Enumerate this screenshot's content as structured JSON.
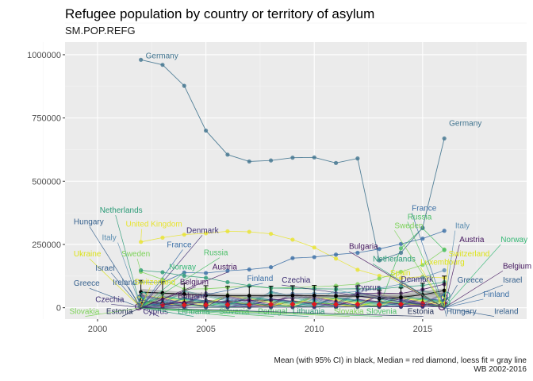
{
  "title": "Refugee population by country or territory of asylum",
  "subtitle": "SM.POP.REFG",
  "caption_line1": "Mean (with 95% CI) in black, Median = red diamond, loess fit = gray line",
  "caption_line2": "WB 2002-2016",
  "chart_data": {
    "type": "line",
    "x_range": [
      1998.5,
      2019.8
    ],
    "y_range": [
      -45000,
      1050000
    ],
    "x_ticks": [
      2000,
      2005,
      2010,
      2015
    ],
    "y_ticks": [
      0,
      250000,
      500000,
      750000,
      1000000
    ],
    "y_tick_labels": [
      "0",
      "250000",
      "500000",
      "750000",
      "1000000"
    ],
    "grid": true,
    "germany": {
      "name": "Germany",
      "x": [
        2002,
        2003,
        2004,
        2005,
        2006,
        2007,
        2008,
        2009,
        2010,
        2011,
        2012,
        2013,
        2014,
        2015,
        2016
      ],
      "y": [
        980000,
        960000,
        877000,
        700000,
        605000,
        578000,
        582000,
        593000,
        594000,
        572000,
        590000,
        187000,
        217000,
        316000,
        669000
      ],
      "color": "#41748f"
    },
    "highlight_series": [
      {
        "name": "United Kingdom",
        "color": "#e8e430",
        "x": [
          2002,
          2003,
          2004,
          2005,
          2006,
          2007,
          2008,
          2009,
          2010,
          2011,
          2012,
          2013,
          2014,
          2015,
          2016
        ],
        "y": [
          260000,
          277000,
          289000,
          294000,
          302000,
          300000,
          292000,
          269000,
          238000,
          194000,
          150000,
          126000,
          117000,
          123000,
          118000
        ]
      },
      {
        "name": "France",
        "color": "#3a6ea5",
        "x": [
          2002,
          2003,
          2004,
          2005,
          2006,
          2007,
          2008,
          2009,
          2010,
          2011,
          2012,
          2013,
          2014,
          2015,
          2016
        ],
        "y": [
          102000,
          100000,
          139000,
          137000,
          146000,
          151000,
          160000,
          196000,
          200000,
          210000,
          217000,
          232000,
          252000,
          273000,
          304000
        ]
      },
      {
        "name": "Sweden",
        "color": "#7ed35a",
        "x": [
          2002,
          2003,
          2004,
          2005,
          2006,
          2007,
          2008,
          2009,
          2010,
          2011,
          2012,
          2013,
          2014,
          2015,
          2016
        ],
        "y": [
          142000,
          112000,
          73000,
          75000,
          80000,
          86000,
          77000,
          80000,
          82000,
          87000,
          93000,
          115000,
          142000,
          169000,
          230000
        ]
      },
      {
        "name": "Italy",
        "color": "#5b8db0",
        "x": [
          2002,
          2003,
          2004,
          2005,
          2006,
          2007,
          2008,
          2009,
          2010,
          2011,
          2012,
          2013,
          2014,
          2015,
          2016
        ],
        "y": [
          5000,
          6000,
          15000,
          21000,
          27000,
          38000,
          47000,
          55000,
          56000,
          58000,
          64000,
          77000,
          93000,
          119000,
          148000
        ]
      },
      {
        "name": "Netherlands",
        "color": "#2a9a76",
        "x": [
          2002,
          2003,
          2004,
          2005,
          2006,
          2007,
          2008,
          2009,
          2010,
          2011,
          2012,
          2013,
          2014,
          2015,
          2016
        ],
        "y": [
          148000,
          140000,
          126000,
          118000,
          101000,
          87000,
          78000,
          76000,
          75000,
          74000,
          75000,
          74000,
          82000,
          88000,
          101000
        ]
      },
      {
        "name": "Russia",
        "color": "#4cbf68",
        "x": [
          2002,
          2003,
          2004,
          2005,
          2006,
          2007,
          2008,
          2009,
          2010,
          2011,
          2012,
          2013,
          2014,
          2015,
          2016
        ],
        "y": [
          17000,
          3000,
          2000,
          1500,
          1000,
          1500,
          3000,
          3500,
          5000,
          3500,
          3000,
          3500,
          235000,
          314000,
          228000
        ]
      },
      {
        "name": "Austria",
        "color": "#45175f",
        "x": [
          2002,
          2003,
          2004,
          2005,
          2006,
          2007,
          2008,
          2009,
          2010,
          2011,
          2012,
          2013,
          2014,
          2015,
          2016
        ],
        "y": [
          30000,
          17000,
          20000,
          21000,
          25000,
          30000,
          30000,
          38000,
          43000,
          47000,
          55000,
          58000,
          56000,
          72000,
          93000
        ]
      },
      {
        "name": "Czechia",
        "color": "#3a2b70",
        "x": [
          2002,
          2003,
          2004,
          2005,
          2006,
          2007,
          2008,
          2009,
          2010,
          2011,
          2012,
          2013,
          2014,
          2015,
          2016
        ],
        "y": [
          1800,
          1000,
          1500,
          2000,
          2000,
          2000,
          2000,
          2100,
          2100,
          2500,
          3000,
          3500,
          3500,
          3500,
          4000
        ]
      }
    ],
    "background_series_count": 26,
    "mean": {
      "x": [
        2002,
        2003,
        2004,
        2005,
        2006,
        2007,
        2008,
        2009,
        2010,
        2011,
        2012,
        2013,
        2014,
        2015,
        2016
      ],
      "y": [
        62000,
        58000,
        54000,
        49000,
        47000,
        47000,
        47000,
        48000,
        48000,
        46000,
        46000,
        36000,
        41000,
        51000,
        68000
      ],
      "ci_low": [
        20000,
        18000,
        17000,
        15000,
        14000,
        14000,
        14000,
        15000,
        15000,
        14000,
        14000,
        10000,
        11000,
        15000,
        20000
      ],
      "ci_high": [
        108000,
        102000,
        95000,
        87000,
        84000,
        84000,
        85000,
        87000,
        88000,
        84000,
        86000,
        68000,
        78000,
        97000,
        125000
      ]
    },
    "median": {
      "x": [
        2002,
        2003,
        2004,
        2005,
        2006,
        2007,
        2008,
        2009,
        2010,
        2011,
        2012,
        2013,
        2014,
        2015,
        2016
      ],
      "y": [
        10000,
        11000,
        11000,
        11000,
        12000,
        12000,
        13000,
        14000,
        14000,
        13000,
        14000,
        13000,
        14000,
        15000,
        17000
      ]
    },
    "loess": {
      "x": [
        2002,
        2004,
        2006,
        2008,
        2010,
        2012,
        2014,
        2016
      ],
      "y": [
        60000,
        52000,
        48000,
        47000,
        46000,
        45000,
        46000,
        58000
      ],
      "band_low": [
        45000,
        42000,
        40000,
        39000,
        38000,
        37000,
        36000,
        40000
      ],
      "band_high": [
        75000,
        62000,
        56000,
        55000,
        54000,
        53000,
        56000,
        76000
      ]
    },
    "labels": [
      {
        "text": "Germany",
        "x": 2002,
        "y": 980000,
        "side": "right",
        "dy": -2,
        "color": "#41748f"
      },
      {
        "text": "Germany",
        "x": 2016,
        "y": 669000,
        "side": "right",
        "dy": -16,
        "color": "#41748f"
      },
      {
        "text": "Hungary",
        "x": 2002,
        "y": 0,
        "side": "left",
        "lx": 1998.9,
        "ly": 330000,
        "color": "#35608d"
      },
      {
        "text": "Netherlands",
        "x": 2002,
        "y": 0,
        "side": "left",
        "lx": 2000.1,
        "ly": 375000,
        "color": "#2a9a76"
      },
      {
        "text": "Italy",
        "x": 2002,
        "y": 0,
        "side": "left",
        "lx": 2000.2,
        "ly": 267000,
        "color": "#5b8db0"
      },
      {
        "text": "United Kingdom",
        "x": 2002,
        "y": 260000,
        "side": "left",
        "lx": 2001.3,
        "ly": 320000,
        "color": "#e8e430"
      },
      {
        "text": "Denmark",
        "x": 2002,
        "y": 0,
        "side": "left",
        "lx": 2004.1,
        "ly": 296000,
        "color": "#3a2b70"
      },
      {
        "text": "France",
        "x": 2002,
        "y": 0,
        "side": "left",
        "lx": 2003.2,
        "ly": 239000,
        "color": "#3a6ea5"
      },
      {
        "text": "Ukraine",
        "x": 2002,
        "y": 0,
        "side": "left",
        "lx": 1998.9,
        "ly": 203000,
        "color": "#dce319"
      },
      {
        "text": "Sweden",
        "x": 2002,
        "y": 142000,
        "side": "left",
        "lx": 2001.1,
        "ly": 203000,
        "color": "#7ed35a"
      },
      {
        "text": "Russia",
        "x": 2002,
        "y": 0,
        "side": "left",
        "lx": 2004.9,
        "ly": 207000,
        "color": "#4cbf68"
      },
      {
        "text": "Israel",
        "x": 2002,
        "y": 0,
        "side": "left",
        "lx": 1999.9,
        "ly": 147000,
        "color": "#35608d"
      },
      {
        "text": "Norway",
        "x": 2002,
        "y": 0,
        "side": "left",
        "lx": 2003.3,
        "ly": 151000,
        "color": "#38b977"
      },
      {
        "text": "Austria",
        "x": 2002,
        "y": 0,
        "side": "left",
        "lx": 2005.3,
        "ly": 151000,
        "color": "#45175f"
      },
      {
        "text": "Finland",
        "x": 2002,
        "y": 0,
        "side": "left",
        "lx": 2006.9,
        "ly": 106000,
        "color": "#3a6ea5"
      },
      {
        "text": "Greece",
        "x": 2002,
        "y": 0,
        "side": "left",
        "lx": 1998.9,
        "ly": 86000,
        "color": "#35608d"
      },
      {
        "text": "Ireland",
        "x": 2002,
        "y": 0,
        "side": "left",
        "lx": 2000.7,
        "ly": 90000,
        "color": "#35608d"
      },
      {
        "text": "Switzerland",
        "x": 2002,
        "y": 0,
        "side": "left",
        "lx": 2001.7,
        "ly": 92000,
        "color": "#dce319"
      },
      {
        "text": "Belgium",
        "x": 2002,
        "y": 0,
        "side": "left",
        "lx": 2003.8,
        "ly": 92000,
        "color": "#45175f"
      },
      {
        "text": "Bulgaria",
        "x": 2002,
        "y": 0,
        "side": "left",
        "lx": 2003.7,
        "ly": 37000,
        "color": "#45175f"
      },
      {
        "text": "Czechia",
        "x": 2002,
        "y": 0,
        "side": "left",
        "lx": 1999.9,
        "ly": 23000,
        "color": "#3a2b70"
      },
      {
        "text": "Slovakia",
        "x": 2002,
        "y": 0,
        "side": "left",
        "lx": 1998.7,
        "ly": -25000,
        "color": "#7ed35a"
      },
      {
        "text": "Estonia",
        "x": 2002,
        "y": 0,
        "side": "left",
        "lx": 2000.4,
        "ly": -25000,
        "color": "#1f2d55"
      },
      {
        "text": "Cyprus",
        "x": 2002,
        "y": 0,
        "side": "left",
        "lx": 2002.1,
        "ly": -25000,
        "color": "#3a2b70"
      },
      {
        "text": "Lithuania",
        "x": 2002,
        "y": 0,
        "side": "left",
        "lx": 2003.7,
        "ly": -25000,
        "color": "#2a9a76"
      },
      {
        "text": "Slovenia",
        "x": 2002,
        "y": 0,
        "side": "left",
        "lx": 2005.6,
        "ly": -25000,
        "color": "#4cbf68"
      },
      {
        "text": "Portugal",
        "x": 2002,
        "y": 0,
        "side": "left",
        "lx": 2007.4,
        "ly": -25000,
        "color": "#4cbf68"
      },
      {
        "text": "Lithuania",
        "x": 2002,
        "y": 0,
        "side": "left",
        "lx": 2009.0,
        "ly": -25000,
        "color": "#2a9a76"
      },
      {
        "text": "Slovakia",
        "x": 2002,
        "y": 0,
        "side": "left",
        "lx": 2010.9,
        "ly": -25000,
        "color": "#7ed35a"
      },
      {
        "text": "Slovenia",
        "x": 2002,
        "y": 0,
        "side": "left",
        "lx": 2012.4,
        "ly": -25000,
        "color": "#4cbf68"
      },
      {
        "text": "Estonia",
        "x": 2002,
        "y": 0,
        "side": "left",
        "lx": 2014.3,
        "ly": -25000,
        "color": "#1f2d55"
      },
      {
        "text": "Hungary",
        "x": 2016,
        "y": 0,
        "side": "left",
        "lx": 2016.1,
        "ly": -25000,
        "color": "#35608d"
      },
      {
        "text": "Ireland",
        "x": 2016,
        "y": 0,
        "side": "left",
        "lx": 2018.3,
        "ly": -25000,
        "color": "#35608d"
      },
      {
        "text": "Czechia",
        "x": 2016,
        "y": 0,
        "side": "left",
        "lx": 2008.5,
        "ly": 99000,
        "color": "#3a2b70"
      },
      {
        "text": "Cyprus",
        "x": 2016,
        "y": 0,
        "side": "left",
        "lx": 2011.9,
        "ly": 70000,
        "color": "#3a2b70"
      },
      {
        "text": "Bulgaria",
        "x": 2016,
        "y": 0,
        "side": "left",
        "lx": 2011.6,
        "ly": 232000,
        "color": "#45175f"
      },
      {
        "text": "Netherlands",
        "x": 2016,
        "y": 0,
        "side": "left",
        "lx": 2012.7,
        "ly": 183000,
        "color": "#2a9a76"
      },
      {
        "text": "Luxembourg",
        "x": 2016,
        "y": 0,
        "side": "left",
        "lx": 2014.9,
        "ly": 170000,
        "color": "#dce319"
      },
      {
        "text": "Spain",
        "x": 2016,
        "y": 0,
        "side": "left",
        "lx": 2013.5,
        "ly": 128000,
        "color": "#dce319"
      },
      {
        "text": "Denmark",
        "x": 2016,
        "y": 0,
        "side": "left",
        "lx": 2014.0,
        "ly": 102000,
        "color": "#3a2b70"
      },
      {
        "text": "Sweden",
        "x": 2016,
        "y": 0,
        "side": "left",
        "lx": 2013.7,
        "ly": 315000,
        "color": "#7ed35a"
      },
      {
        "text": "France",
        "x": 2016,
        "y": 0,
        "side": "left",
        "lx": 2014.5,
        "ly": 384000,
        "color": "#3a6ea5"
      },
      {
        "text": "Italy",
        "x": 2016,
        "y": 0,
        "side": "left",
        "lx": 2016.5,
        "ly": 314000,
        "color": "#5b8db0"
      },
      {
        "text": "Russia",
        "x": 2016,
        "y": 0,
        "side": "left",
        "lx": 2014.3,
        "ly": 349000,
        "color": "#4cbf68"
      },
      {
        "text": "Austria",
        "x": 2016,
        "y": 0,
        "side": "left",
        "lx": 2016.7,
        "ly": 259000,
        "color": "#45175f"
      },
      {
        "text": "Norway",
        "x": 2016,
        "y": 0,
        "side": "left",
        "lx": 2018.6,
        "ly": 259000,
        "color": "#38b977"
      },
      {
        "text": "Switzerland",
        "x": 2016,
        "y": 0,
        "side": "left",
        "lx": 2016.2,
        "ly": 203000,
        "color": "#dce319"
      },
      {
        "text": "Belgium",
        "x": 2016,
        "y": 0,
        "side": "left",
        "lx": 2018.7,
        "ly": 155000,
        "color": "#45175f"
      },
      {
        "text": "Greece",
        "x": 2016,
        "y": 0,
        "side": "left",
        "lx": 2016.6,
        "ly": 99000,
        "color": "#35608d"
      },
      {
        "text": "Israel",
        "x": 2016,
        "y": 0,
        "side": "left",
        "lx": 2018.7,
        "ly": 99000,
        "color": "#35608d"
      },
      {
        "text": "Finland",
        "x": 2016,
        "y": 0,
        "side": "left",
        "lx": 2017.8,
        "ly": 43000,
        "color": "#3a6ea5"
      }
    ]
  }
}
